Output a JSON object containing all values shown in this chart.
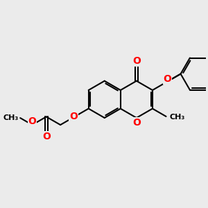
{
  "background_color": "#ebebeb",
  "line_color": "#000000",
  "oxygen_color": "#ff0000",
  "bond_width": 1.5,
  "figsize": [
    3.0,
    3.0
  ],
  "dpi": 100,
  "xlim": [
    -5.0,
    5.5
  ],
  "ylim": [
    -4.0,
    3.5
  ]
}
